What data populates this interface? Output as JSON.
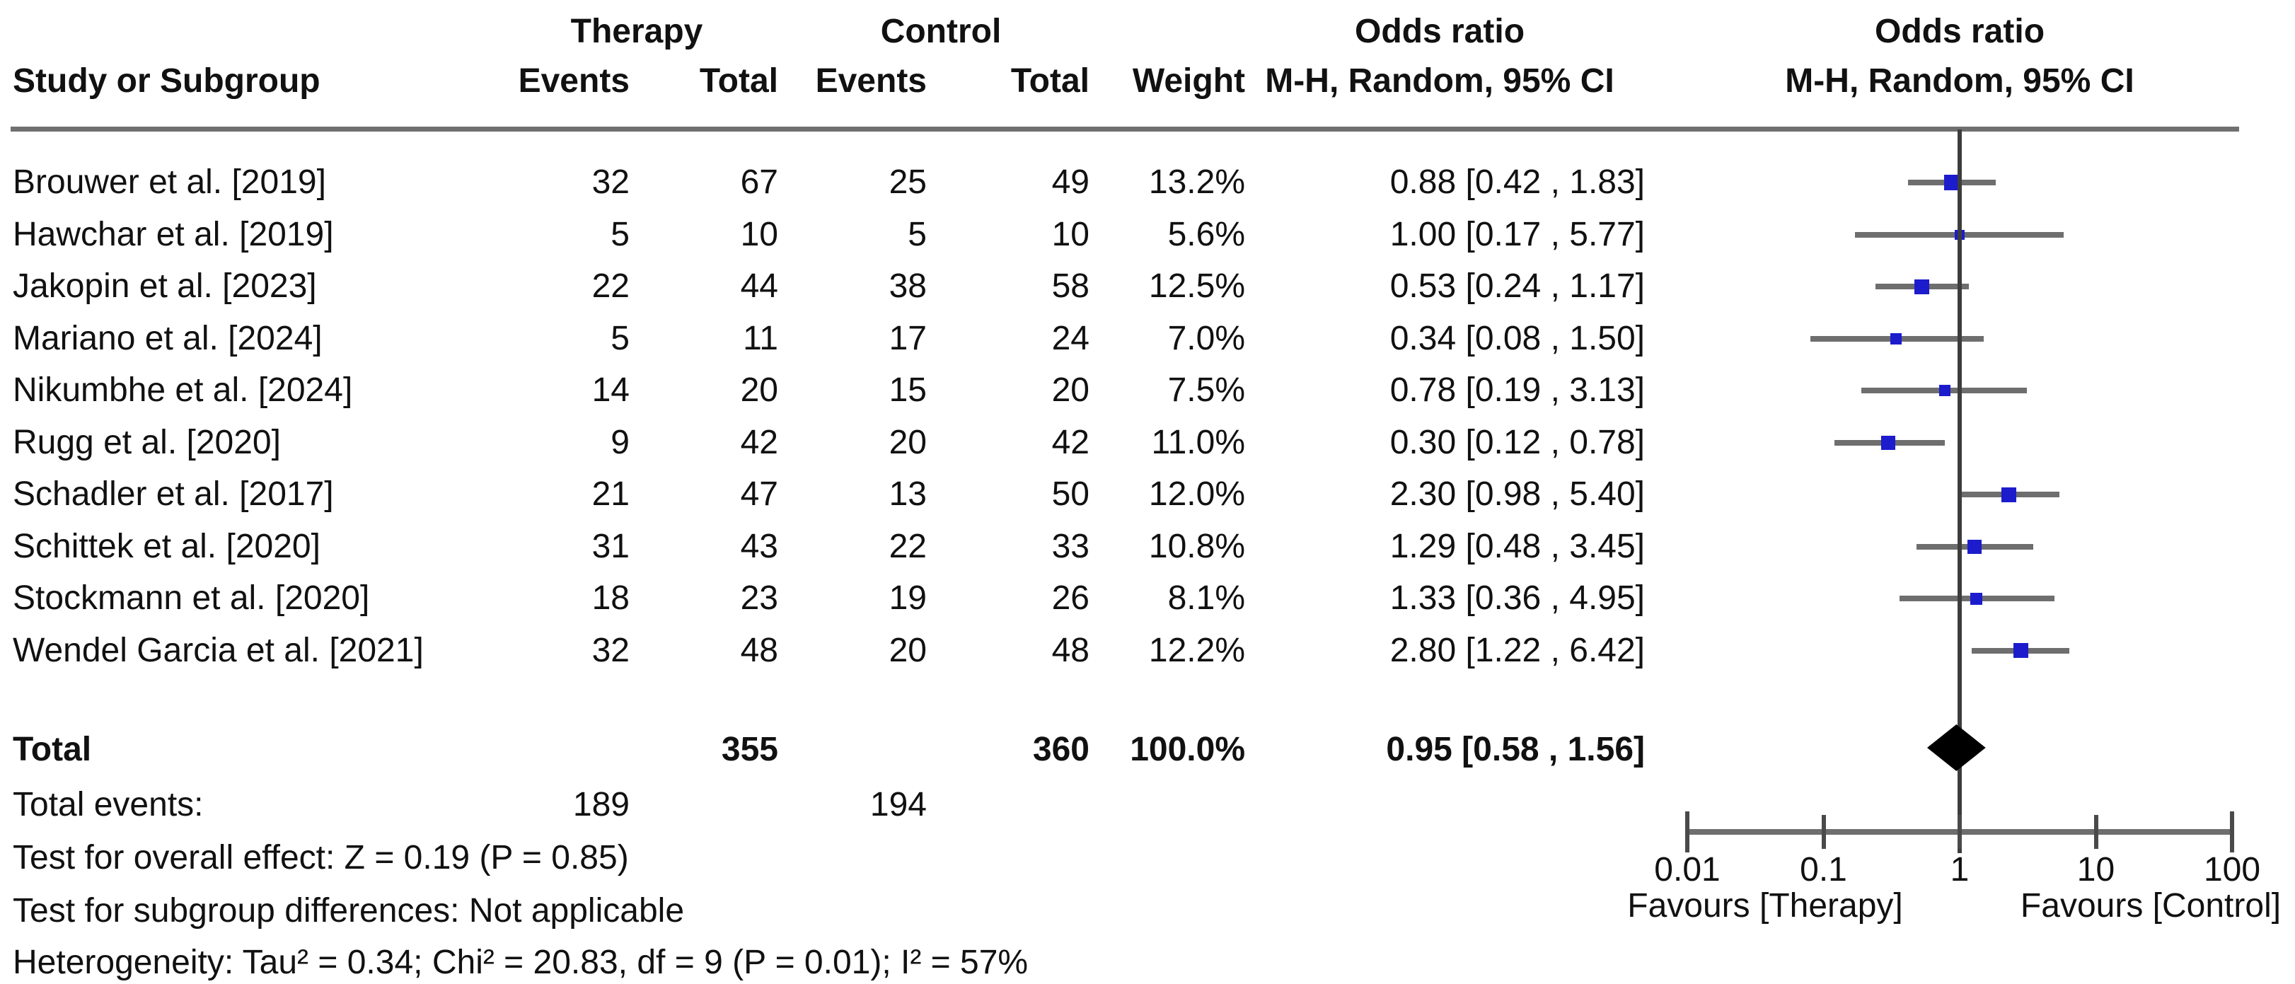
{
  "figure": {
    "columns": {
      "study": "Study or Subgroup",
      "events": "Events",
      "total": "Total",
      "weight": "Weight",
      "group_therapy": "Therapy",
      "group_control": "Control",
      "odds_ratio": "Odds ratio",
      "method_ci": "M-H, Random, 95% CI"
    },
    "total_row": {
      "label": "Total",
      "therapy_total": "355",
      "control_total": "360",
      "weight": "100.0%",
      "or_text": "0.95 [0.58 , 1.56]"
    },
    "total_events": {
      "label": "Total events:",
      "therapy": "189",
      "control": "194"
    },
    "footer": {
      "overall_effect": "Test for overall effect: Z = 0.19 (P = 0.85)",
      "subgroup_diff": "Test for subgroup differences: Not applicable",
      "heterogeneity": "Heterogeneity: Tau² = 0.34; Chi² = 20.83, df = 9 (P = 0.01); I² = 57%"
    }
  },
  "chart_data": {
    "type": "forest",
    "title": "Odds ratio, M-H, Random, 95% CI",
    "x_scale": "log",
    "xlim": [
      0.01,
      100
    ],
    "x_ticks": [
      "0.01",
      "0.1",
      "1",
      "10",
      "100"
    ],
    "favours_left": "Favours [Therapy]",
    "favours_right": "Favours [Control]",
    "marker_color": "#1c1ccd",
    "ci_color": "#6e6e6e",
    "diamond_color": "#000000",
    "studies": [
      {
        "name": "Brouwer et al. [2019]",
        "t_events": 32,
        "t_total": 67,
        "c_events": 25,
        "c_total": 49,
        "weight_pct": 13.2,
        "weight_text": "13.2%",
        "or": 0.88,
        "ci_low": 0.42,
        "ci_high": 1.83,
        "or_text": "0.88 [0.42 , 1.83]"
      },
      {
        "name": "Hawchar et al. [2019]",
        "t_events": 5,
        "t_total": 10,
        "c_events": 5,
        "c_total": 10,
        "weight_pct": 5.6,
        "weight_text": "5.6%",
        "or": 1.0,
        "ci_low": 0.17,
        "ci_high": 5.77,
        "or_text": "1.00 [0.17 , 5.77]"
      },
      {
        "name": "Jakopin et al. [2023]",
        "t_events": 22,
        "t_total": 44,
        "c_events": 38,
        "c_total": 58,
        "weight_pct": 12.5,
        "weight_text": "12.5%",
        "or": 0.53,
        "ci_low": 0.24,
        "ci_high": 1.17,
        "or_text": "0.53 [0.24 , 1.17]"
      },
      {
        "name": "Mariano et al. [2024]",
        "t_events": 5,
        "t_total": 11,
        "c_events": 17,
        "c_total": 24,
        "weight_pct": 7.0,
        "weight_text": "7.0%",
        "or": 0.34,
        "ci_low": 0.08,
        "ci_high": 1.5,
        "or_text": "0.34 [0.08 , 1.50]"
      },
      {
        "name": "Nikumbhe et al. [2024]",
        "t_events": 14,
        "t_total": 20,
        "c_events": 15,
        "c_total": 20,
        "weight_pct": 7.5,
        "weight_text": "7.5%",
        "or": 0.78,
        "ci_low": 0.19,
        "ci_high": 3.13,
        "or_text": "0.78 [0.19 , 3.13]"
      },
      {
        "name": "Rugg et al. [2020]",
        "t_events": 9,
        "t_total": 42,
        "c_events": 20,
        "c_total": 42,
        "weight_pct": 11.0,
        "weight_text": "11.0%",
        "or": 0.3,
        "ci_low": 0.12,
        "ci_high": 0.78,
        "or_text": "0.30 [0.12 , 0.78]"
      },
      {
        "name": "Schadler et al. [2017]",
        "t_events": 21,
        "t_total": 47,
        "c_events": 13,
        "c_total": 50,
        "weight_pct": 12.0,
        "weight_text": "12.0%",
        "or": 2.3,
        "ci_low": 0.98,
        "ci_high": 5.4,
        "or_text": "2.30 [0.98 , 5.40]"
      },
      {
        "name": "Schittek et al. [2020]",
        "t_events": 31,
        "t_total": 43,
        "c_events": 22,
        "c_total": 33,
        "weight_pct": 10.8,
        "weight_text": "10.8%",
        "or": 1.29,
        "ci_low": 0.48,
        "ci_high": 3.45,
        "or_text": "1.29 [0.48 , 3.45]"
      },
      {
        "name": "Stockmann et al. [2020]",
        "t_events": 18,
        "t_total": 23,
        "c_events": 19,
        "c_total": 26,
        "weight_pct": 8.1,
        "weight_text": "8.1%",
        "or": 1.33,
        "ci_low": 0.36,
        "ci_high": 4.95,
        "or_text": "1.33 [0.36 , 4.95]"
      },
      {
        "name": "Wendel Garcia et al. [2021]",
        "t_events": 32,
        "t_total": 48,
        "c_events": 20,
        "c_total": 48,
        "weight_pct": 12.2,
        "weight_text": "12.2%",
        "or": 2.8,
        "ci_low": 1.22,
        "ci_high": 6.42,
        "or_text": "2.80 [1.22 , 6.42]"
      }
    ],
    "overall": {
      "or": 0.95,
      "ci_low": 0.58,
      "ci_high": 1.56
    }
  }
}
